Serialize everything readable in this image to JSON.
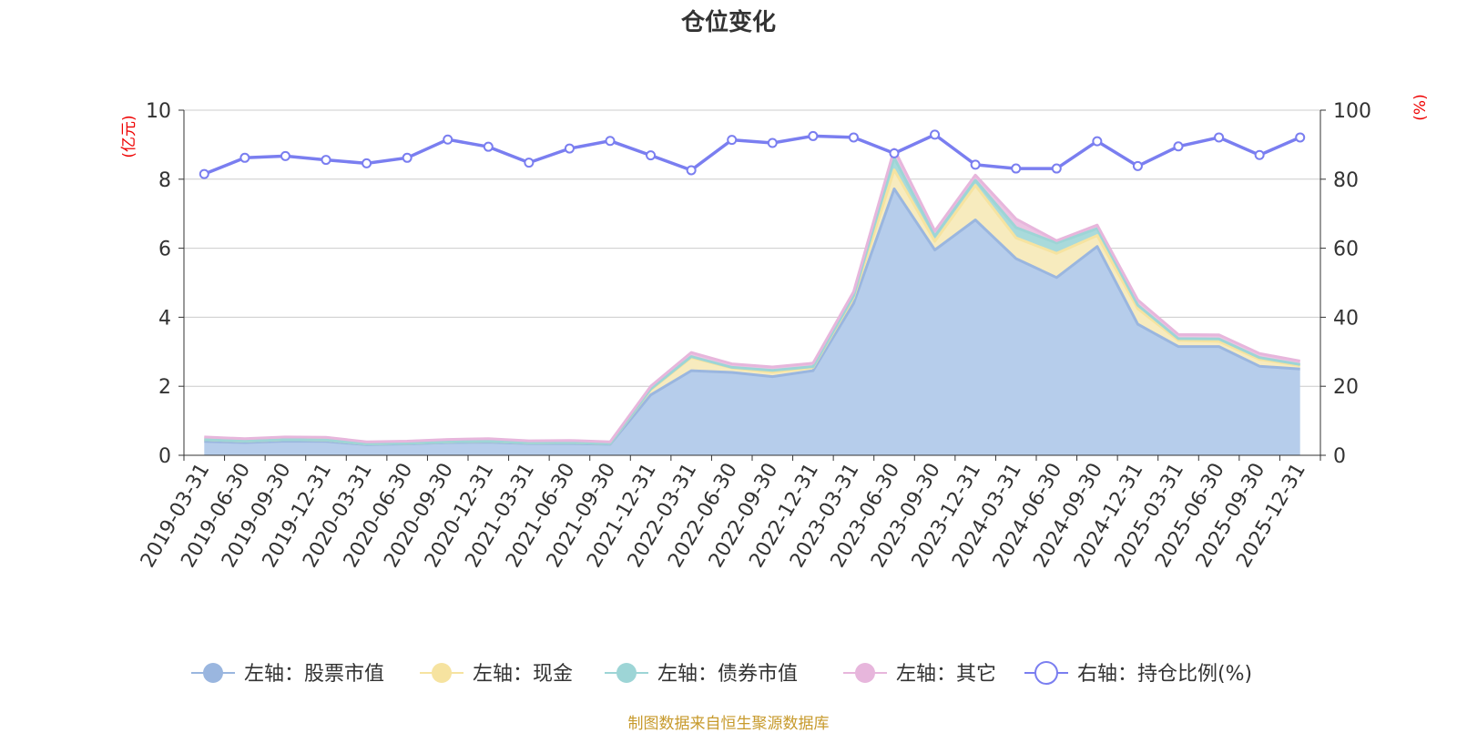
{
  "chart_data": {
    "type": "area",
    "title": "仓位变化",
    "left_axis_label": "(亿元)",
    "right_axis_label": "(%)",
    "left_ylim": [
      0,
      10
    ],
    "left_ticks": [
      0,
      2,
      4,
      6,
      8,
      10
    ],
    "right_ylim": [
      0,
      100
    ],
    "right_ticks": [
      0,
      20,
      40,
      60,
      80,
      100
    ],
    "categories": [
      "2019-03-31",
      "2019-06-30",
      "2019-09-30",
      "2019-12-31",
      "2020-03-31",
      "2020-06-30",
      "2020-09-30",
      "2020-12-31",
      "2021-03-31",
      "2021-06-30",
      "2021-09-30",
      "2021-12-31",
      "2022-03-31",
      "2022-06-30",
      "2022-09-30",
      "2022-12-31",
      "2023-03-31",
      "2023-06-30",
      "2023-09-30",
      "2023-12-31",
      "2024-03-31",
      "2024-06-30",
      "2024-09-30",
      "2024-12-31",
      "2025-03-31",
      "2025-06-30",
      "2025-09-30",
      "2025-12-31"
    ],
    "series": [
      {
        "name": "左轴：股票市值",
        "axis": "left",
        "stack": true,
        "color": "#9ab6df",
        "fill": "#b6cdeb",
        "values": [
          0.4,
          0.37,
          0.41,
          0.4,
          0.31,
          0.33,
          0.37,
          0.38,
          0.34,
          0.34,
          0.32,
          1.75,
          2.45,
          2.4,
          2.28,
          2.45,
          4.4,
          7.72,
          5.95,
          6.82,
          5.7,
          5.15,
          6.05,
          3.8,
          3.15,
          3.15,
          2.58,
          2.5
        ]
      },
      {
        "name": "左轴：现金",
        "axis": "left",
        "stack": true,
        "color": "#f6e3a0",
        "fill": "#f7ebbe",
        "values": [
          0.05,
          0.04,
          0.04,
          0.04,
          0.02,
          0.02,
          0.02,
          0.03,
          0.02,
          0.03,
          0.02,
          0.15,
          0.38,
          0.13,
          0.13,
          0.1,
          0.17,
          0.55,
          0.25,
          1.0,
          0.6,
          0.7,
          0.32,
          0.45,
          0.18,
          0.15,
          0.2,
          0.1
        ]
      },
      {
        "name": "左轴：债券市值",
        "axis": "left",
        "stack": true,
        "color": "#9dd5d6",
        "fill": "#a9dadb",
        "values": [
          0,
          0,
          0,
          0,
          0,
          0,
          0,
          0,
          0,
          0,
          0,
          0.02,
          0.03,
          0.02,
          0.05,
          0.02,
          0.05,
          0.35,
          0.15,
          0.15,
          0.3,
          0.3,
          0.2,
          0.1,
          0.05,
          0.07,
          0.05,
          0.03
        ]
      },
      {
        "name": "左轴：其它",
        "axis": "left",
        "stack": true,
        "color": "#e7b6dc",
        "fill": "#ecc4e2",
        "values": [
          0.08,
          0.07,
          0.08,
          0.08,
          0.06,
          0.06,
          0.07,
          0.07,
          0.06,
          0.06,
          0.05,
          0.08,
          0.12,
          0.1,
          0.1,
          0.1,
          0.12,
          0.25,
          0.15,
          0.15,
          0.25,
          0.07,
          0.1,
          0.15,
          0.12,
          0.12,
          0.12,
          0.1
        ]
      },
      {
        "name": "右轴：持仓比例(%)",
        "axis": "right",
        "stack": false,
        "color": "#7a7ef0",
        "values": [
          81.5,
          86.2,
          86.7,
          85.6,
          84.6,
          86.2,
          91.5,
          89.4,
          84.8,
          88.9,
          91.1,
          86.9,
          82.6,
          91.4,
          90.5,
          92.5,
          92.1,
          87.5,
          92.9,
          84.2,
          83.1,
          83.1,
          91.0,
          83.8,
          89.5,
          92.1,
          87.0,
          92.1
        ]
      }
    ]
  },
  "source_text": "制图数据来自恒生聚源数据库",
  "colors": {
    "title": "#333333",
    "axis_label": "#ee0000",
    "tick_text": "#333333",
    "grid": "#cccccc",
    "axis_line": "#333333",
    "source": "#c79a2c"
  }
}
